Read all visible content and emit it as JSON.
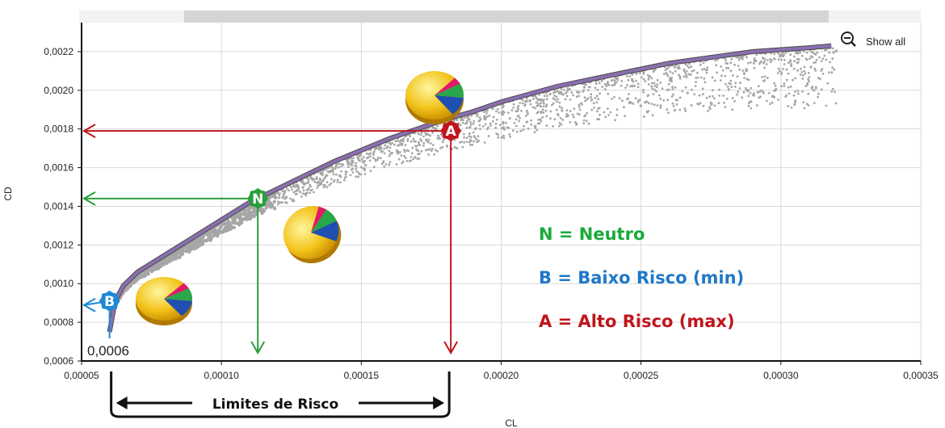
{
  "chart_data": {
    "type": "scatter",
    "xlabel": "CL",
    "ylabel": "CD",
    "xlim": [
      5e-05,
      0.00035
    ],
    "ylim": [
      0.0006,
      0.00235
    ],
    "x_ticks": [
      "0,00005",
      "0,00010",
      "0,00015",
      "0,00020",
      "0,00025",
      "0,00030",
      "0,00035"
    ],
    "x_tick_values": [
      5e-05,
      0.0001,
      0.00015,
      0.0002,
      0.00025,
      0.0003,
      0.00035
    ],
    "y_ticks": [
      "0,0006",
      "0,0008",
      "0,0010",
      "0,0012",
      "0,0014",
      "0,0016",
      "0,0018",
      "0,0020",
      "0,0022"
    ],
    "y_tick_values": [
      0.0006,
      0.0008,
      0.001,
      0.0012,
      0.0014,
      0.0016,
      0.0018,
      0.002,
      0.0022
    ],
    "grid": true,
    "frontier": {
      "color": "#8a6fb0",
      "x": [
        6e-05,
        6.2e-05,
        6.5e-05,
        7e-05,
        8e-05,
        9e-05,
        0.0001,
        0.00011,
        0.00012,
        0.00013,
        0.00014,
        0.00015,
        0.00016,
        0.00017,
        0.00018,
        0.00019,
        0.0002,
        0.00021,
        0.00022,
        0.00023,
        0.00024,
        0.00025,
        0.00026,
        0.00027,
        0.00028,
        0.00029,
        0.0003,
        0.00031,
        0.000318
      ],
      "y": [
        0.00075,
        0.00091,
        0.00099,
        0.00106,
        0.00115,
        0.00124,
        0.00133,
        0.00142,
        0.00149,
        0.00156,
        0.00163,
        0.00169,
        0.00175,
        0.0018,
        0.00185,
        0.00189,
        0.00194,
        0.00198,
        0.00202,
        0.00205,
        0.00208,
        0.00211,
        0.00214,
        0.00216,
        0.00218,
        0.0022,
        0.00221,
        0.00222,
        0.00223
      ]
    },
    "markers": [
      {
        "label": "A",
        "x": 0.000182,
        "y": 0.00179,
        "color": "#c0151c"
      },
      {
        "label": "N",
        "x": 0.000113,
        "y": 0.00144,
        "color": "#2a9e3a"
      },
      {
        "label": "B",
        "x": 6e-05,
        "y": 0.00091,
        "color": "#1e88d6"
      }
    ],
    "x_annotation": "0,0006",
    "legend": [
      {
        "text": "N = Neutro",
        "color": "#1aaa3a"
      },
      {
        "text": "B = Baixo Risco (min)",
        "color": "#1f78c8"
      },
      {
        "text": "A = Alto Risco (max)",
        "color": "#c0151c"
      }
    ],
    "range_label": "Limites de Risco",
    "range": [
      6e-05,
      0.000182
    ]
  },
  "toolbar": {
    "show_all": "Show all",
    "zoom_icon": "zoom-out-icon"
  },
  "colors": {
    "scatter": "#a6a6a6",
    "grid": "#d9d9d9",
    "axis": "#111111"
  }
}
